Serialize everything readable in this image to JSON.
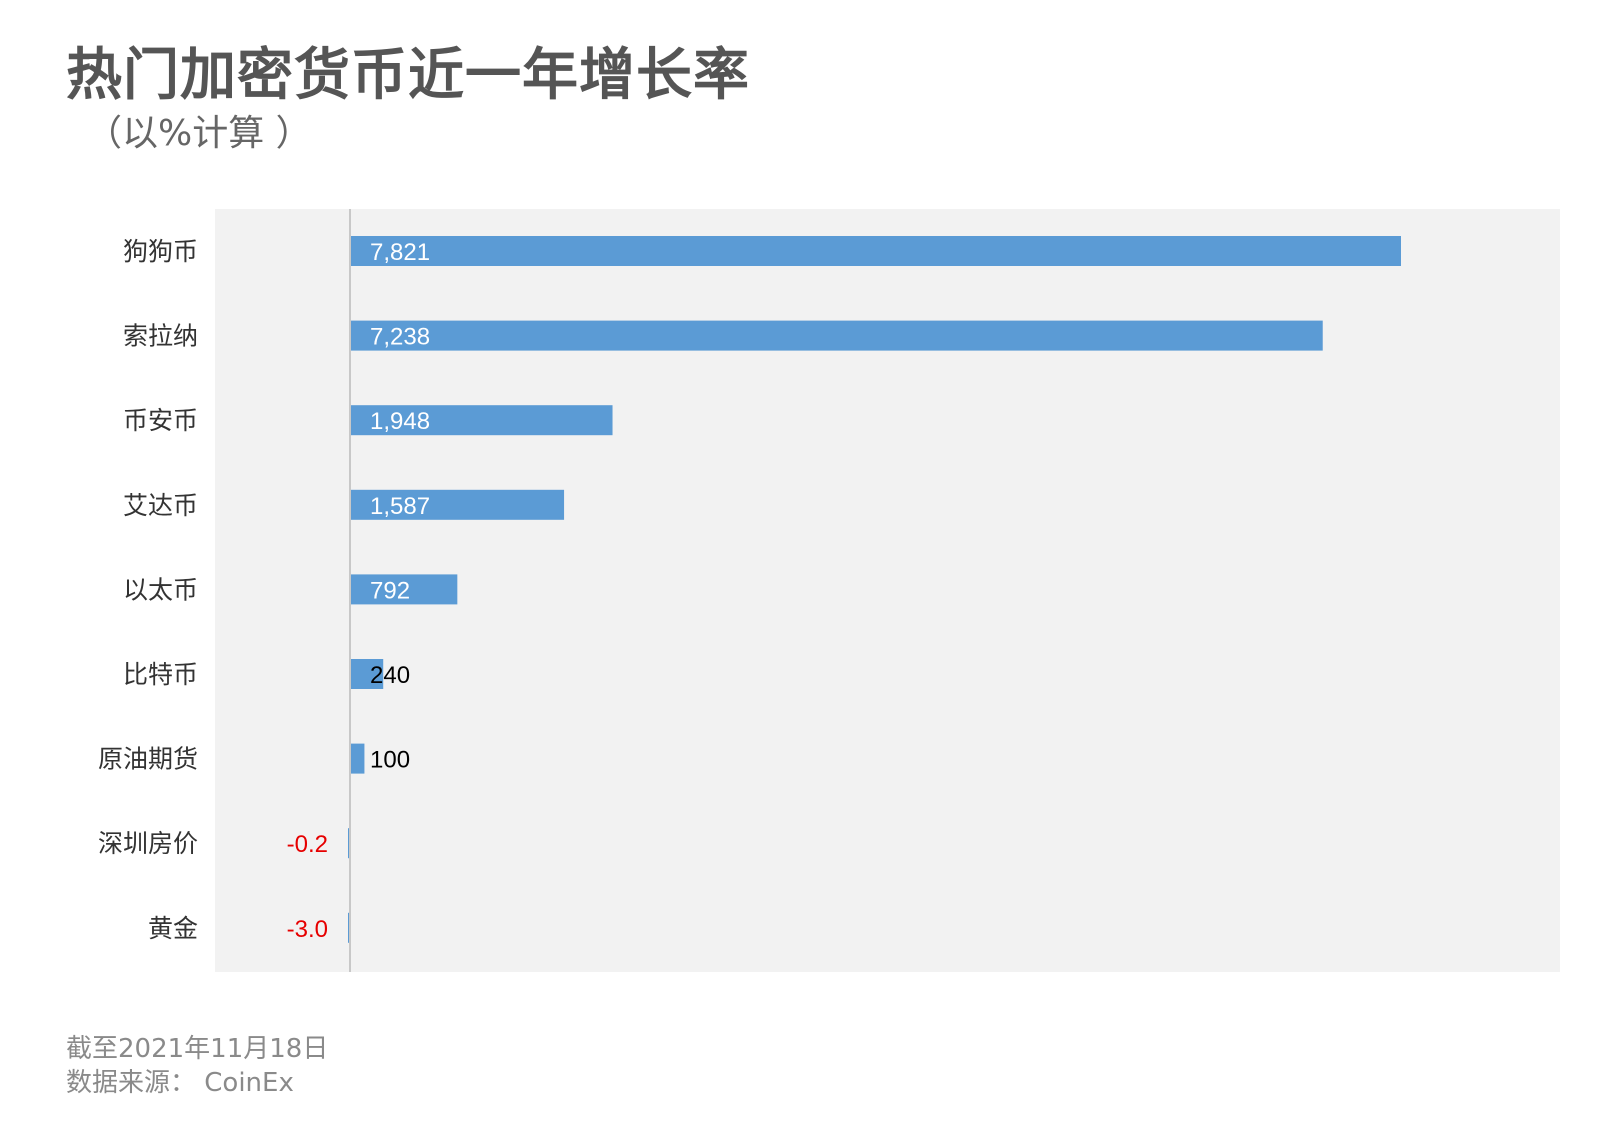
{
  "title": "热门加密货币近一年增长率",
  "subtitle": "（以%计算 ）",
  "footer": {
    "date_note": "截至2021年11月18日",
    "source_note": "数据来源： CoinEx"
  },
  "colors": {
    "bar": "#5b9bd5",
    "plot_background": "#f2f2f2",
    "axis_line": "#c8c8c8",
    "label_inside": "#ffffff",
    "label_outside": "#000000",
    "label_negative": "#e60000",
    "category_text": "#333333"
  },
  "chart_data": {
    "type": "bar",
    "orientation": "horizontal",
    "categories": [
      "狗狗币",
      "索拉纳",
      "币安币",
      "艾达币",
      "以太币",
      "比特币",
      "原油期货",
      "深圳房价",
      "黄金"
    ],
    "values": [
      7821,
      7238,
      1948,
      1587,
      792,
      240,
      100,
      -0.2,
      -3.0
    ],
    "data_labels": [
      "7,821",
      "7,238",
      "1,948",
      "1,587",
      "792",
      "240",
      "100",
      "-0.2",
      "-3.0"
    ],
    "xlim": [
      -1000,
      9000
    ],
    "grid": false,
    "legend": false
  }
}
